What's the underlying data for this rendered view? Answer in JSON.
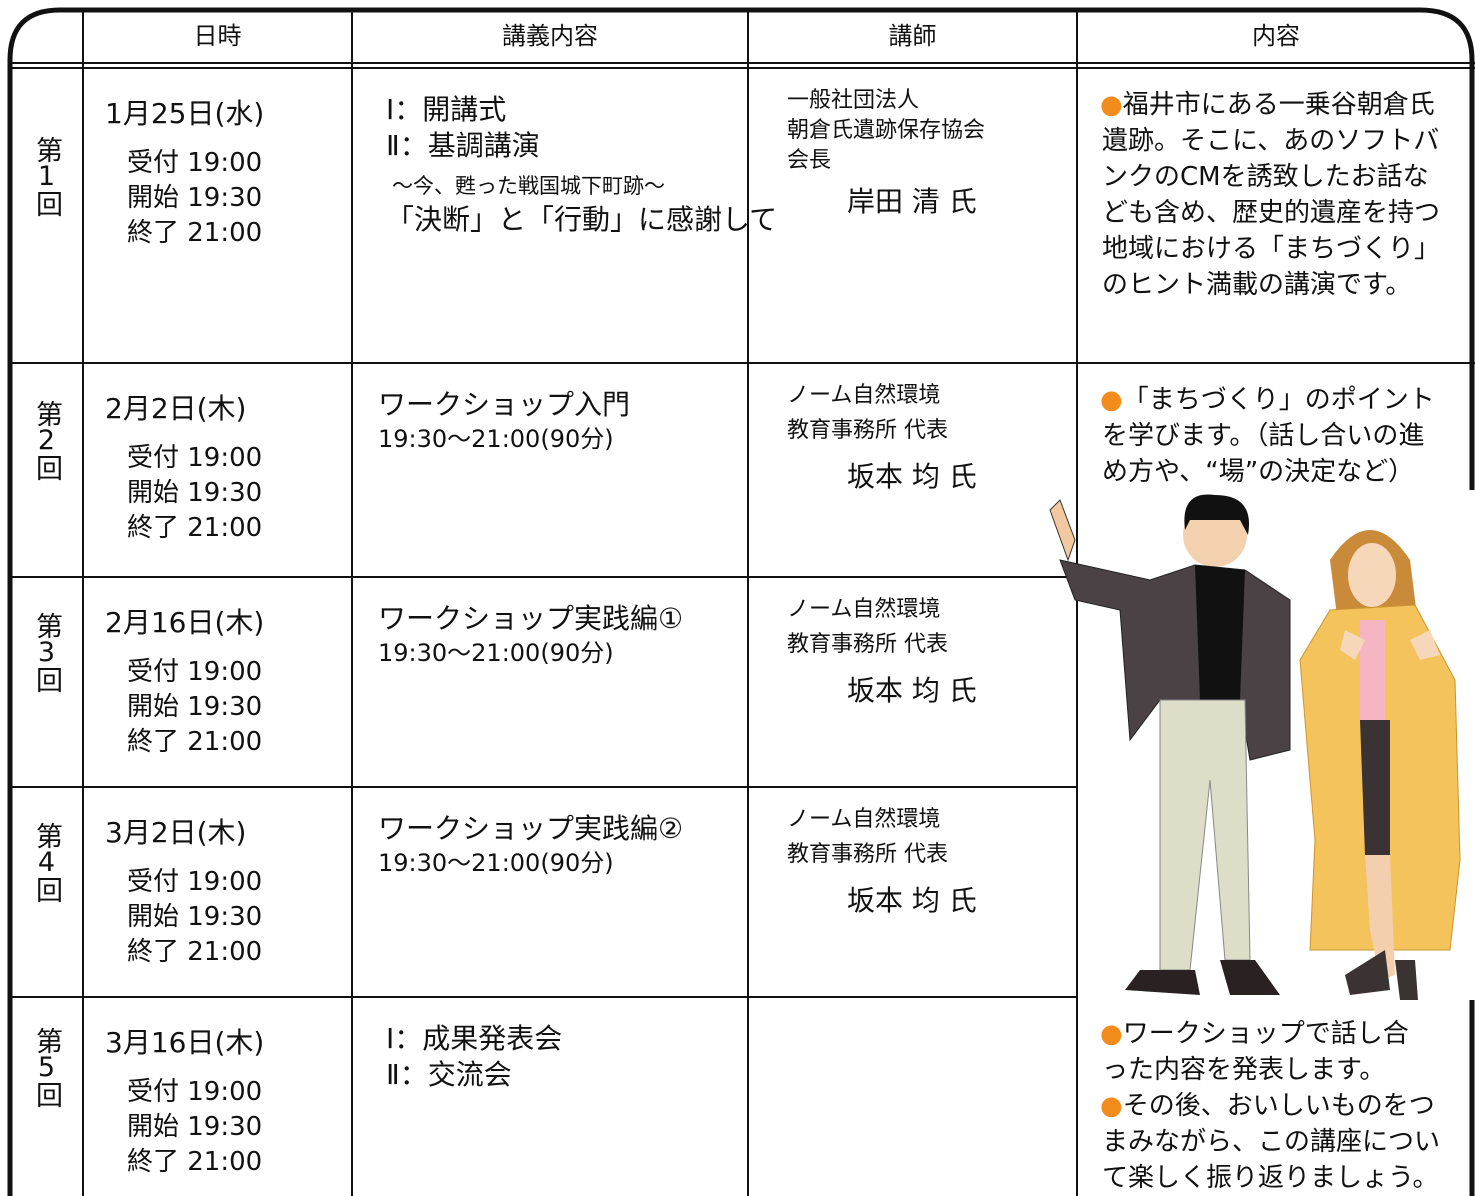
{
  "header": [
    "日時",
    "講義内容",
    "講師",
    "内容"
  ],
  "rows": [
    {
      "session": "第1回",
      "date": "1月25日(水)",
      "times": [
        "受付 19:00",
        "開始 19:30",
        "終了 21:00"
      ],
      "lecture": [
        "Ⅰ：開講式",
        "Ⅱ：基調講演",
        "〜今、甦った戦国城下町跡〜",
        "「決断」と「行動」に感謝して"
      ],
      "lecturer": [
        "一般社団法人",
        "朝倉氏遺跡保存協会",
        "会長"
      ],
      "speaker": "岸田 清 氏",
      "content": [
        [
          "福井市にある一乗谷朝倉氏",
          "遺跡。そこに、あのソフトバ",
          "ンクのCMを誘致したお話な",
          "ども含め、歴史的遺産を持つ",
          "地域における「まちづくり」",
          "のヒント満載の講演です。"
        ]
      ]
    },
    {
      "session": "第2回",
      "date": "2月2日(木)",
      "times": [
        "受付 19:00",
        "開始 19:30",
        "終了 21:00"
      ],
      "lecture": [
        "ワークショップ入門",
        "19:30〜21:00(90分)"
      ],
      "lecturer": [
        "ノーム自然環境",
        "教育事務所 代表"
      ],
      "speaker": "坂本 均 氏",
      "content": [
        [
          "「まちづくり」のポイント",
          "を学びます。（話し合いの進",
          "め方や、“場”の決定など）"
        ]
      ]
    },
    {
      "session": "第3回",
      "date": "2月16日(木)",
      "times": [
        "受付 19:00",
        "開始 19:30",
        "終了 21:00"
      ],
      "lecture": [
        "ワークショップ実践編①",
        "19:30〜21:00(90分)"
      ],
      "lecturer": [
        "ノーム自然環境",
        "教育事務所 代表"
      ],
      "speaker": "坂本 均 氏",
      "content": []
    },
    {
      "session": "第4回",
      "date": "3月2日(木)",
      "times": [
        "受付 19:00",
        "開始 19:30",
        "終了 21:00"
      ],
      "lecture": [
        "ワークショップ実践編②",
        "19:30〜21:00(90分)"
      ],
      "lecturer": [
        "ノーム自然環境",
        "教育事務所 代表"
      ],
      "speaker": "坂本 均 氏",
      "content": []
    },
    {
      "session": "第5回",
      "date": "3月16日(木)",
      "times": [
        "受付 19:00",
        "開始 19:30",
        "終了 21:00"
      ],
      "lecture": [
        "Ⅰ：成果発表会",
        "Ⅱ：交流会"
      ],
      "lecturer": [],
      "content": [
        [
          "ワークショップで話し合",
          "った内容を発表します。"
        ],
        [
          "その後、おいしいものをつ",
          "まみながら、この講座につい",
          "て楽しく振り返りましょう。"
        ]
      ]
    }
  ]
}
